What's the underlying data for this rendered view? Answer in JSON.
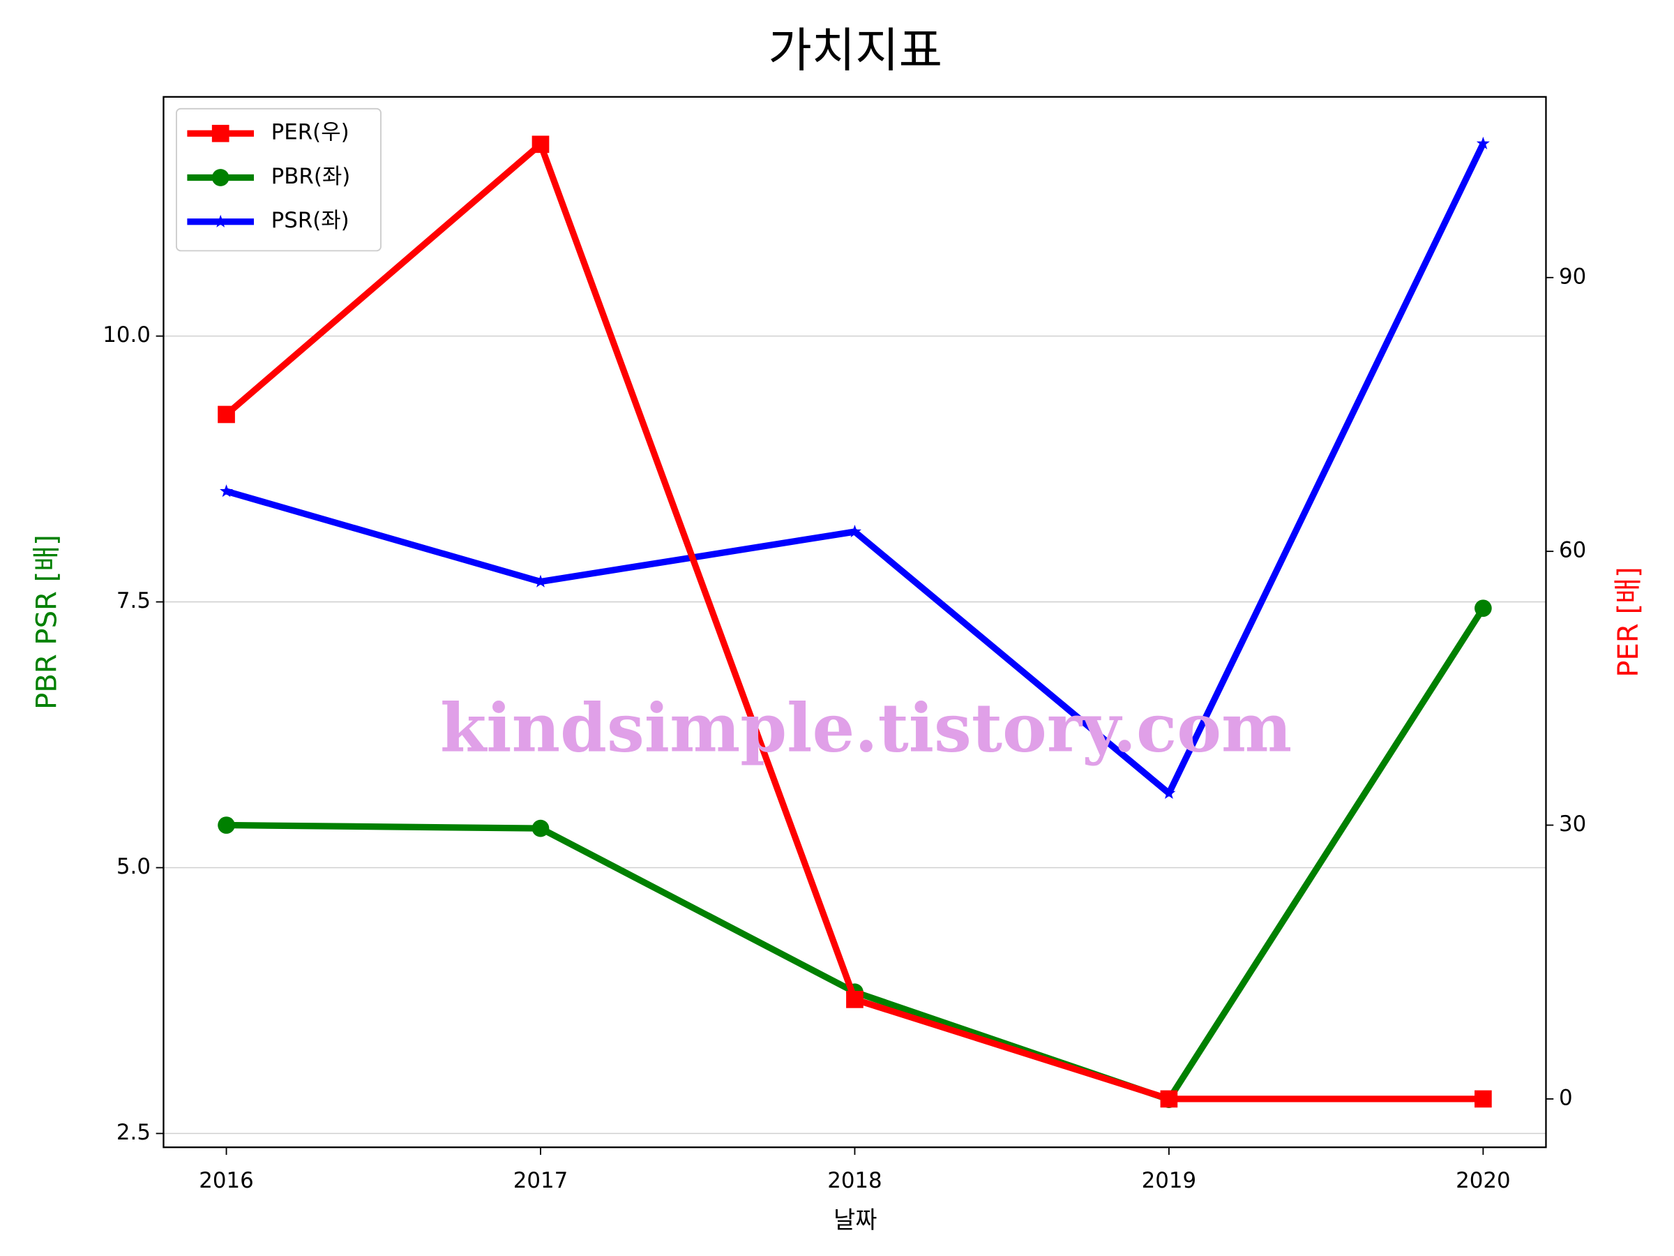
{
  "chart_data": {
    "type": "line",
    "title": "가치지표",
    "x_label": "날짜",
    "y_label": "PBR PSR [배]",
    "y2_label": "PER [배]",
    "y_label_color": "#008000",
    "y2_label_color": "#ff0000",
    "x": [
      2016,
      2017,
      2018,
      2019,
      2020
    ],
    "xlim": [
      2015.8,
      2020.2
    ],
    "xticks": [
      2016,
      2017,
      2018,
      2019,
      2020
    ],
    "ylim": [
      2.37,
      12.25
    ],
    "yticks": [
      2.5,
      {
        "value": 5,
        "label": "5.0"
      },
      {
        "value": 7.5,
        "label": "7.5"
      },
      {
        "value": 10,
        "label": "10.0"
      }
    ],
    "y2lim": [
      -5.3,
      109.8
    ],
    "y2ticks": [
      0,
      30,
      60,
      90
    ],
    "grid": true,
    "legend": "upper-left",
    "series": [
      {
        "name": "PER(우)",
        "color": "#ff0000",
        "marker": "square",
        "axis": "y2",
        "values": [
          75,
          104.6,
          10.9,
          0,
          0
        ]
      },
      {
        "name": "PBR(좌)",
        "color": "#008000",
        "marker": "circle",
        "values": [
          5.4,
          5.37,
          3.83,
          2.82,
          7.44
        ]
      },
      {
        "name": "PSR(좌)",
        "color": "#0000ff",
        "marker": "star",
        "values": [
          8.54,
          7.69,
          8.16,
          5.7,
          11.81
        ]
      }
    ],
    "annotation": "kindsimple.tistory.com",
    "annotation_color": "#e0a0e8"
  }
}
